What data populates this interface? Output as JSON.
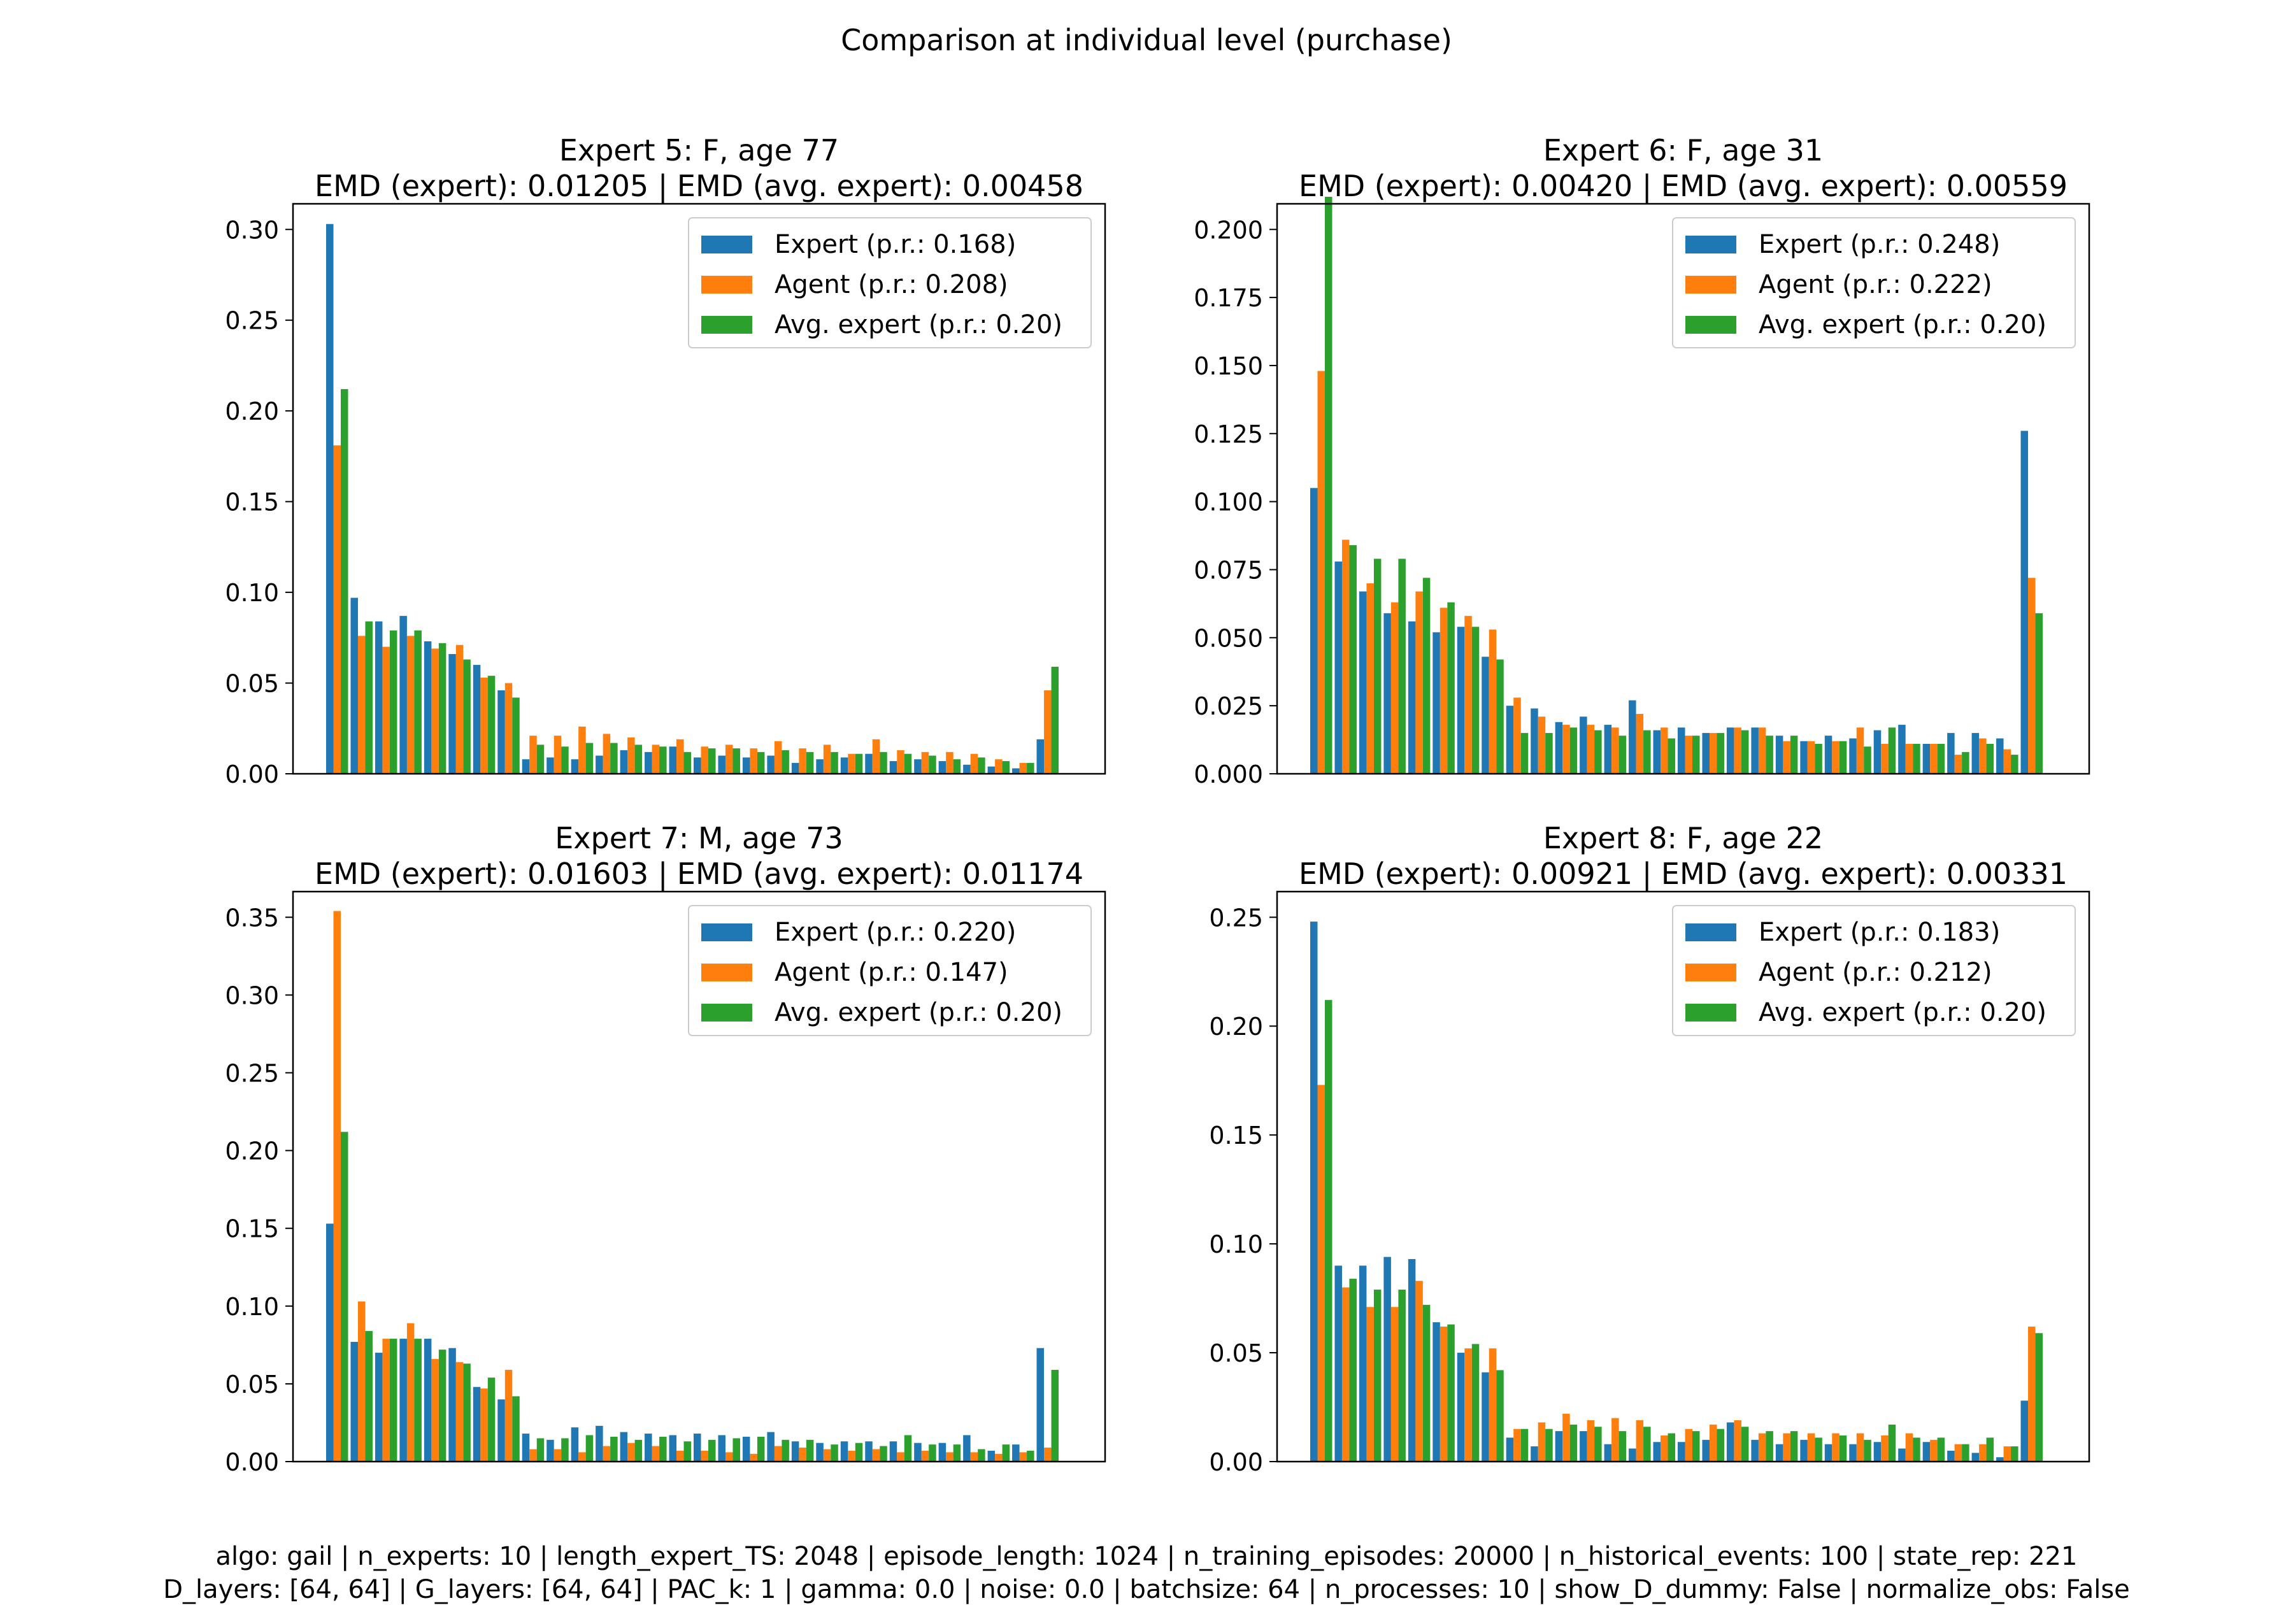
{
  "figure": {
    "title": "Comparison at individual level (purchase)",
    "footer_line1": "algo: gail | n_experts: 10 | length_expert_TS: 2048 | episode_length: 1024 | n_training_episodes: 20000 | n_historical_events: 100 | state_rep: 221",
    "footer_line2": "D_layers: [64, 64] | G_layers: [64, 64] | PAC_k: 1 | gamma: 0.0 | noise: 0.0 | batchsize: 64 | n_processes: 10 | show_D_dummy: False | normalize_obs: False"
  },
  "colors": {
    "expert": "#1f77b4",
    "agent": "#ff7f0e",
    "avg": "#2ca02c"
  },
  "chart_data": [
    {
      "type": "bar",
      "title_line1": "Expert 5: F, age 77",
      "title_line2": "EMD (expert): 0.01205 | EMD (avg. expert): 0.00458",
      "ylim": [
        0,
        0.3
      ],
      "yticks": [
        "0.00",
        "0.05",
        "0.10",
        "0.15",
        "0.20",
        "0.25",
        "0.30"
      ],
      "legend_position": "upper right",
      "series": [
        {
          "name": "Expert (p.r.: 0.168)",
          "values": [
            0.303,
            0.097,
            0.084,
            0.087,
            0.073,
            0.066,
            0.06,
            0.046,
            0.008,
            0.009,
            0.008,
            0.01,
            0.013,
            0.012,
            0.015,
            0.009,
            0.01,
            0.009,
            0.01,
            0.006,
            0.008,
            0.009,
            0.011,
            0.007,
            0.008,
            0.007,
            0.005,
            0.004,
            0.003,
            0.019
          ]
        },
        {
          "name": "Agent (p.r.: 0.208)",
          "values": [
            0.181,
            0.076,
            0.07,
            0.076,
            0.069,
            0.071,
            0.053,
            0.05,
            0.021,
            0.021,
            0.026,
            0.022,
            0.02,
            0.016,
            0.019,
            0.015,
            0.016,
            0.014,
            0.018,
            0.014,
            0.016,
            0.011,
            0.019,
            0.013,
            0.012,
            0.012,
            0.011,
            0.008,
            0.006,
            0.046
          ]
        },
        {
          "name": "Avg. expert (p.r.: 0.20)",
          "values": [
            0.212,
            0.084,
            0.079,
            0.079,
            0.072,
            0.063,
            0.054,
            0.042,
            0.016,
            0.015,
            0.017,
            0.017,
            0.016,
            0.015,
            0.012,
            0.014,
            0.014,
            0.012,
            0.013,
            0.012,
            0.012,
            0.011,
            0.012,
            0.011,
            0.01,
            0.008,
            0.009,
            0.007,
            0.006,
            0.059
          ]
        }
      ]
    },
    {
      "type": "bar",
      "title_line1": "Expert 6: F, age 31",
      "title_line2": "EMD (expert): 0.00420 | EMD (avg. expert): 0.00559",
      "ylim": [
        0,
        0.2
      ],
      "yticks": [
        "0.000",
        "0.025",
        "0.050",
        "0.075",
        "0.100",
        "0.125",
        "0.150",
        "0.175",
        "0.200"
      ],
      "legend_position": "upper right",
      "series": [
        {
          "name": "Expert (p.r.: 0.248)",
          "values": [
            0.105,
            0.078,
            0.067,
            0.059,
            0.056,
            0.052,
            0.054,
            0.043,
            0.025,
            0.024,
            0.019,
            0.021,
            0.018,
            0.027,
            0.016,
            0.017,
            0.015,
            0.017,
            0.017,
            0.014,
            0.012,
            0.014,
            0.013,
            0.016,
            0.018,
            0.011,
            0.015,
            0.015,
            0.013,
            0.126
          ]
        },
        {
          "name": "Agent (p.r.: 0.222)",
          "values": [
            0.148,
            0.086,
            0.07,
            0.063,
            0.067,
            0.061,
            0.058,
            0.053,
            0.028,
            0.021,
            0.018,
            0.018,
            0.017,
            0.022,
            0.017,
            0.014,
            0.015,
            0.017,
            0.017,
            0.012,
            0.012,
            0.012,
            0.017,
            0.011,
            0.011,
            0.011,
            0.007,
            0.013,
            0.009,
            0.072
          ]
        },
        {
          "name": "Avg. expert (p.r.: 0.20)",
          "values": [
            0.212,
            0.084,
            0.079,
            0.079,
            0.072,
            0.063,
            0.054,
            0.042,
            0.015,
            0.015,
            0.017,
            0.016,
            0.014,
            0.016,
            0.013,
            0.014,
            0.015,
            0.016,
            0.014,
            0.014,
            0.011,
            0.012,
            0.01,
            0.017,
            0.011,
            0.011,
            0.008,
            0.011,
            0.007,
            0.059
          ]
        }
      ]
    },
    {
      "type": "bar",
      "title_line1": "Expert 7: M, age 73",
      "title_line2": "EMD (expert): 0.01603 | EMD (avg. expert): 0.01174",
      "ylim": [
        0,
        0.35
      ],
      "yticks": [
        "0.00",
        "0.05",
        "0.10",
        "0.15",
        "0.20",
        "0.25",
        "0.30",
        "0.35"
      ],
      "legend_position": "upper right",
      "series": [
        {
          "name": "Expert (p.r.: 0.220)",
          "values": [
            0.153,
            0.077,
            0.07,
            0.079,
            0.079,
            0.073,
            0.048,
            0.04,
            0.018,
            0.014,
            0.022,
            0.023,
            0.019,
            0.018,
            0.017,
            0.018,
            0.017,
            0.016,
            0.019,
            0.013,
            0.012,
            0.013,
            0.013,
            0.013,
            0.012,
            0.012,
            0.017,
            0.007,
            0.011,
            0.073
          ]
        },
        {
          "name": "Agent (p.r.: 0.147)",
          "values": [
            0.354,
            0.103,
            0.079,
            0.089,
            0.066,
            0.064,
            0.047,
            0.059,
            0.008,
            0.008,
            0.006,
            0.01,
            0.012,
            0.01,
            0.007,
            0.007,
            0.006,
            0.005,
            0.01,
            0.009,
            0.008,
            0.007,
            0.008,
            0.006,
            0.007,
            0.006,
            0.006,
            0.005,
            0.006,
            0.009
          ]
        },
        {
          "name": "Avg. expert (p.r.: 0.20)",
          "values": [
            0.212,
            0.084,
            0.079,
            0.079,
            0.072,
            0.063,
            0.054,
            0.042,
            0.015,
            0.015,
            0.017,
            0.016,
            0.014,
            0.016,
            0.013,
            0.014,
            0.015,
            0.016,
            0.014,
            0.014,
            0.011,
            0.012,
            0.01,
            0.017,
            0.011,
            0.011,
            0.008,
            0.011,
            0.007,
            0.059
          ]
        }
      ]
    },
    {
      "type": "bar",
      "title_line1": "Expert 8: F, age 22",
      "title_line2": "EMD (expert): 0.00921 | EMD (avg. expert): 0.00331",
      "ylim": [
        0,
        0.25
      ],
      "yticks": [
        "0.00",
        "0.05",
        "0.10",
        "0.15",
        "0.20",
        "0.25"
      ],
      "legend_position": "upper right",
      "series": [
        {
          "name": "Expert (p.r.: 0.183)",
          "values": [
            0.248,
            0.09,
            0.09,
            0.094,
            0.093,
            0.064,
            0.05,
            0.041,
            0.011,
            0.007,
            0.014,
            0.014,
            0.008,
            0.006,
            0.009,
            0.009,
            0.01,
            0.018,
            0.01,
            0.008,
            0.01,
            0.008,
            0.008,
            0.009,
            0.006,
            0.009,
            0.005,
            0.004,
            0.002,
            0.028
          ]
        },
        {
          "name": "Agent (p.r.: 0.212)",
          "values": [
            0.173,
            0.08,
            0.071,
            0.071,
            0.083,
            0.062,
            0.052,
            0.052,
            0.015,
            0.018,
            0.022,
            0.019,
            0.02,
            0.019,
            0.012,
            0.015,
            0.017,
            0.019,
            0.013,
            0.013,
            0.013,
            0.013,
            0.013,
            0.012,
            0.013,
            0.01,
            0.008,
            0.008,
            0.007,
            0.062
          ]
        },
        {
          "name": "Avg. expert (p.r.: 0.20)",
          "values": [
            0.212,
            0.084,
            0.079,
            0.079,
            0.072,
            0.063,
            0.054,
            0.042,
            0.015,
            0.015,
            0.017,
            0.016,
            0.014,
            0.016,
            0.013,
            0.014,
            0.015,
            0.016,
            0.014,
            0.014,
            0.011,
            0.012,
            0.01,
            0.017,
            0.011,
            0.011,
            0.008,
            0.011,
            0.007,
            0.059
          ]
        }
      ]
    }
  ]
}
